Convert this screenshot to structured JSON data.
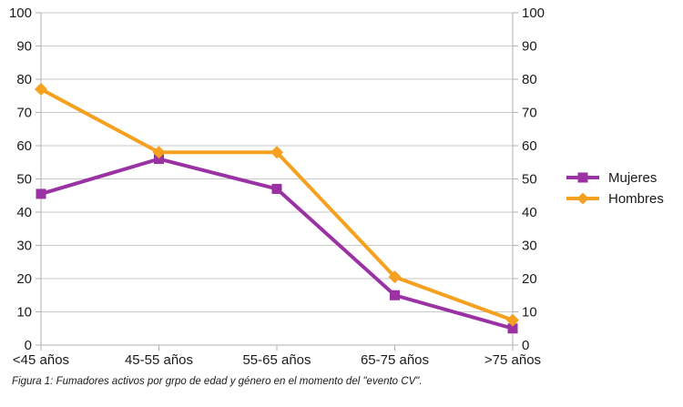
{
  "figure": {
    "caption": "Figura 1: Fumadores activos por grpo de edad y género en el momento del \"evento CV\"."
  },
  "chart_data": {
    "type": "line",
    "title": "",
    "xlabel": "",
    "ylabel": "",
    "categories": [
      "<45 años",
      "45-55 años",
      "55-65 años",
      "65-75 años",
      ">75 años"
    ],
    "series": [
      {
        "name": "Mujeres",
        "values": [
          45.5,
          56,
          47,
          15,
          5
        ],
        "color": "#9B32A4",
        "marker": "square"
      },
      {
        "name": "Hombres",
        "values": [
          77,
          58,
          58,
          20.5,
          7.5
        ],
        "color": "#F5A01E",
        "marker": "diamond"
      }
    ],
    "ylim": [
      0,
      100
    ],
    "yticks": [
      0,
      10,
      20,
      30,
      40,
      50,
      60,
      70,
      80,
      90,
      100
    ],
    "grid": true,
    "y_axis_sides": [
      "left",
      "right"
    ],
    "legend_position": "right",
    "colors": {
      "gridline": "#C9C9C9",
      "axis": "#B2B2B2",
      "text": "#1A1A1A"
    }
  }
}
